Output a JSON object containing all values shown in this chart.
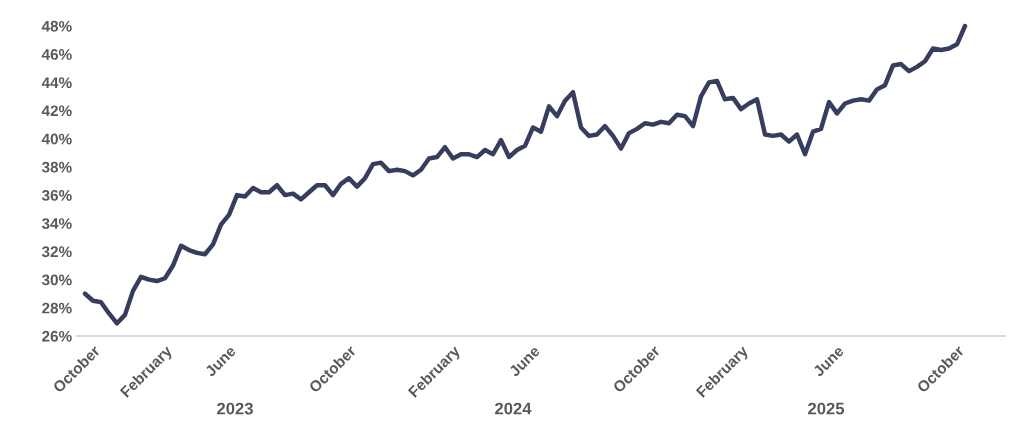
{
  "chart_data": {
    "type": "line",
    "categories": [
      null,
      "October",
      null,
      null,
      null,
      null,
      null,
      null,
      null,
      null,
      "February",
      null,
      null,
      null,
      null,
      null,
      null,
      null,
      "June",
      null,
      null,
      null,
      null,
      null,
      null,
      null,
      null,
      null,
      null,
      null,
      null,
      null,
      null,
      "October",
      null,
      null,
      null,
      null,
      null,
      null,
      null,
      null,
      null,
      null,
      null,
      null,
      "February",
      null,
      null,
      null,
      null,
      null,
      null,
      null,
      null,
      null,
      "June",
      null,
      null,
      null,
      null,
      null,
      null,
      null,
      null,
      null,
      null,
      null,
      null,
      null,
      null,
      "October",
      null,
      null,
      null,
      null,
      null,
      null,
      null,
      null,
      null,
      null,
      "February",
      null,
      null,
      null,
      null,
      null,
      null,
      null,
      null,
      null,
      null,
      null,
      "June",
      null,
      null,
      null,
      null,
      null,
      null,
      null,
      null,
      null,
      null,
      null,
      null,
      null,
      null,
      "October",
      null
    ],
    "series": [
      {
        "color": "#363d5e",
        "values": [
          29.0,
          28.5,
          28.4,
          27.6,
          26.9,
          27.5,
          29.2,
          30.2,
          30.0,
          29.9,
          30.1,
          31.0,
          32.4,
          32.1,
          31.9,
          31.8,
          32.5,
          33.9,
          34.6,
          36.0,
          35.9,
          36.5,
          36.2,
          36.2,
          36.7,
          36.0,
          36.1,
          35.7,
          36.2,
          36.7,
          36.7,
          36.0,
          36.8,
          37.2,
          36.6,
          37.2,
          38.2,
          38.3,
          37.7,
          37.8,
          37.7,
          37.4,
          37.8,
          38.6,
          38.7,
          39.4,
          38.6,
          38.9,
          38.9,
          38.7,
          39.2,
          38.9,
          39.9,
          38.7,
          39.2,
          39.5,
          40.8,
          40.5,
          42.3,
          41.6,
          42.7,
          43.3,
          40.8,
          40.2,
          40.3,
          40.9,
          40.2,
          39.3,
          40.4,
          40.7,
          41.1,
          41.0,
          41.2,
          41.1,
          41.7,
          41.6,
          40.9,
          43.0,
          44.0,
          44.1,
          42.8,
          42.9,
          42.1,
          42.5,
          42.8,
          40.3,
          40.2,
          40.3,
          39.8,
          40.3,
          38.9,
          40.5,
          40.7,
          42.6,
          41.8,
          42.5,
          42.7,
          42.8,
          42.7,
          43.5,
          43.8,
          45.2,
          45.3,
          44.8,
          45.1,
          45.5,
          46.4,
          46.3,
          46.4,
          46.7,
          48.0
        ]
      }
    ],
    "ylim": [
      26,
      48
    ],
    "yticks": [
      {
        "value": 26,
        "label": "26%"
      },
      {
        "value": 28,
        "label": "28%"
      },
      {
        "value": 30,
        "label": "30%"
      },
      {
        "value": 32,
        "label": "32%"
      },
      {
        "value": 34,
        "label": "34%"
      },
      {
        "value": 36,
        "label": "36%"
      },
      {
        "value": 38,
        "label": "38%"
      },
      {
        "value": 40,
        "label": "40%"
      },
      {
        "value": 42,
        "label": "42%"
      },
      {
        "value": 44,
        "label": "44%"
      },
      {
        "value": 46,
        "label": "46%"
      },
      {
        "value": 48,
        "label": "48%"
      }
    ],
    "grid": false,
    "marker": "none",
    "line_style": "solid",
    "annotations": [
      "2023",
      "2024",
      "2025"
    ]
  }
}
